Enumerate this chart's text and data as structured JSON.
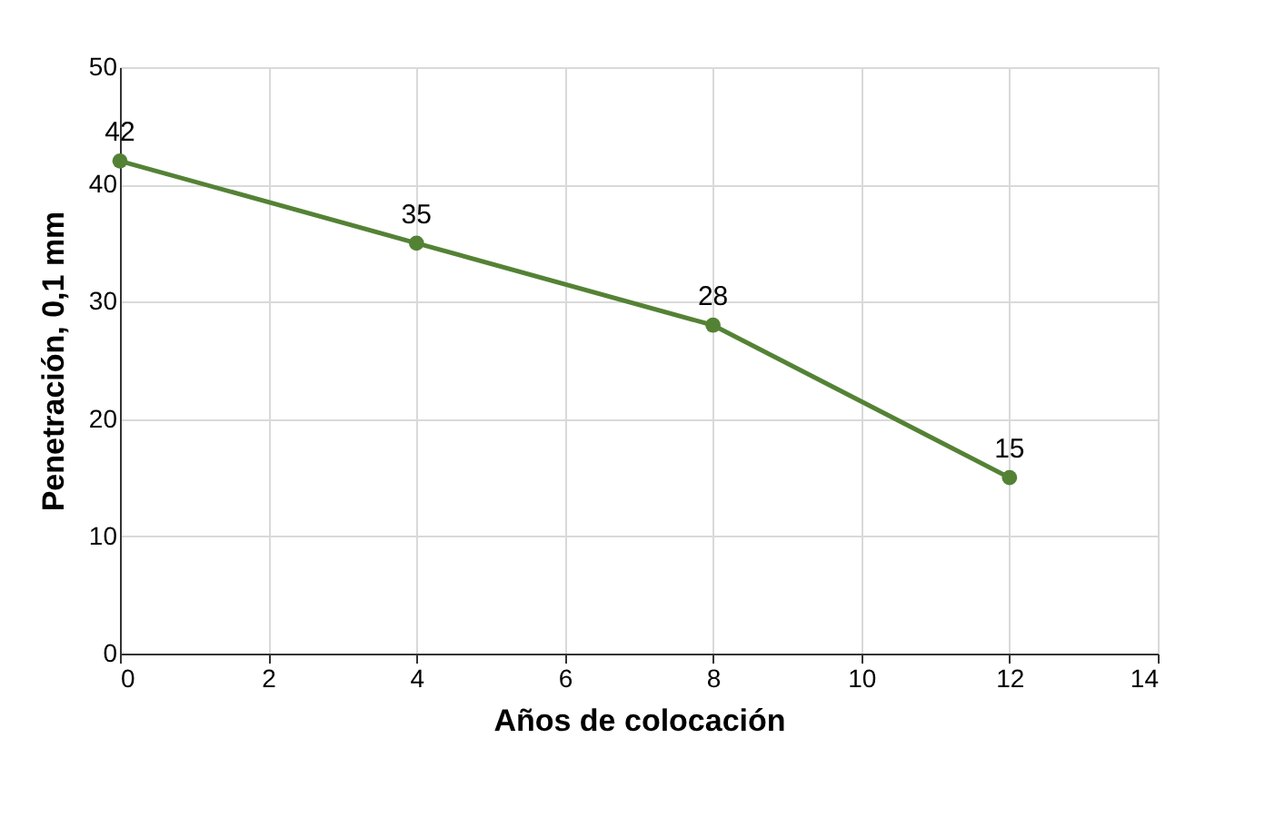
{
  "chart_data": {
    "type": "line",
    "xlabel": "Años de colocación",
    "ylabel": "Penetración, 0,1 mm",
    "x": [
      0,
      4,
      8,
      12
    ],
    "series": [
      {
        "color": "#548235",
        "values": [
          42,
          35,
          28,
          15
        ]
      }
    ],
    "xlim": [
      0,
      14
    ],
    "xticks": [
      0,
      2,
      4,
      6,
      8,
      10,
      12,
      14
    ],
    "ylim": [
      0,
      50
    ],
    "yticks": [
      0,
      10,
      20,
      30,
      40,
      50
    ],
    "grid": true,
    "marker": "circle",
    "line_style": "solid",
    "data_labels": true
  }
}
